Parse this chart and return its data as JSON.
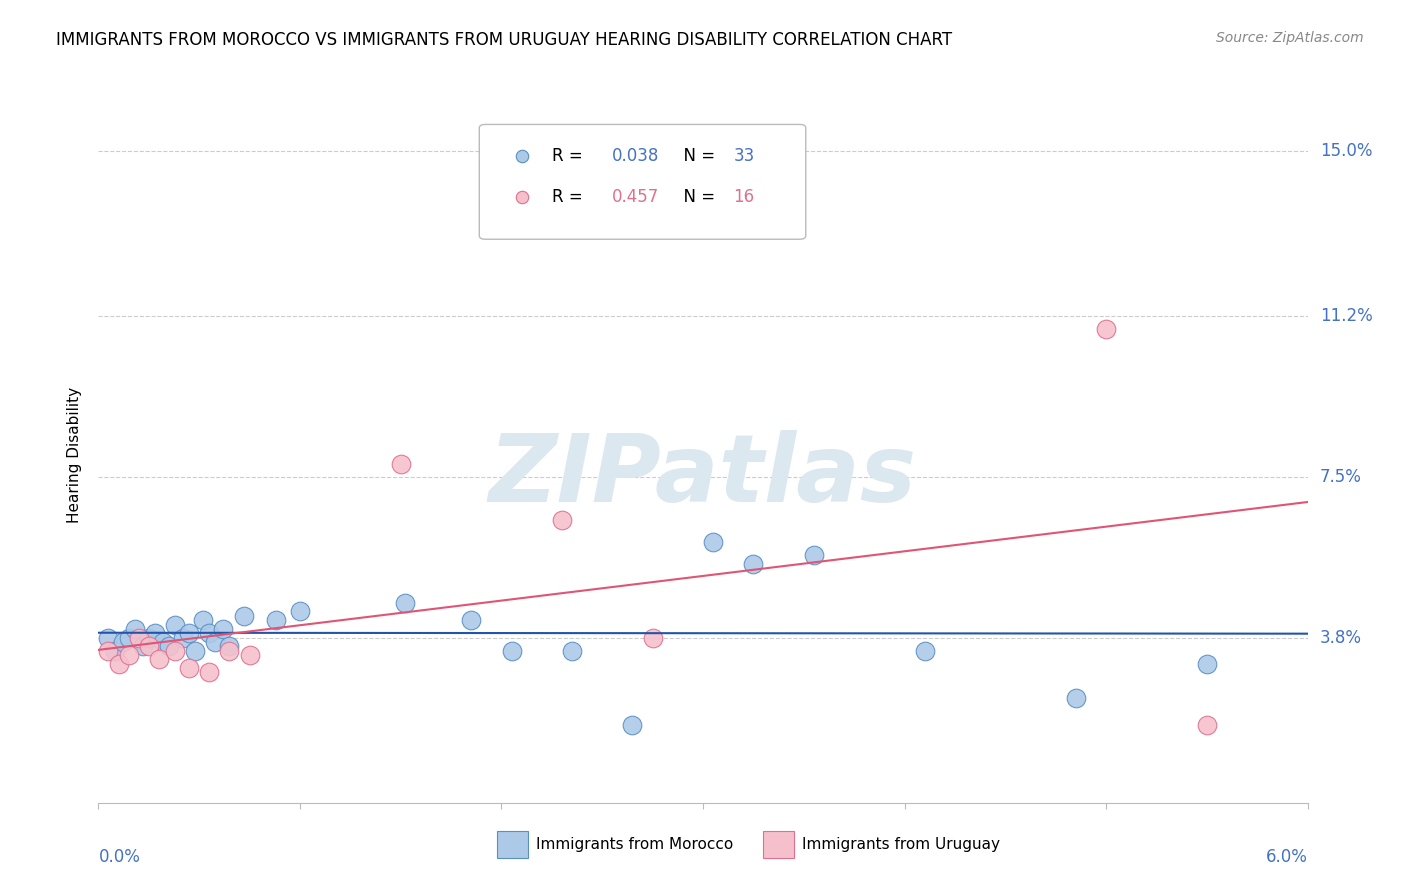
{
  "title": "IMMIGRANTS FROM MOROCCO VS IMMIGRANTS FROM URUGUAY HEARING DISABILITY CORRELATION CHART",
  "source": "Source: ZipAtlas.com",
  "ylabel": "Hearing Disability",
  "xlim": [
    0.0,
    6.0
  ],
  "ylim": [
    0.0,
    16.0
  ],
  "ytick_vals": [
    3.8,
    7.5,
    11.2,
    15.0
  ],
  "ytick_labels": [
    "3.8%",
    "7.5%",
    "11.2%",
    "15.0%"
  ],
  "xtick_vals": [
    0,
    1,
    2,
    3,
    4,
    5,
    6
  ],
  "grid_color": "#cccccc",
  "background_color": "#ffffff",
  "morocco_fill_color": "#adc9e8",
  "morocco_edge_color": "#5a8fc4",
  "uruguay_fill_color": "#f5c0cc",
  "uruguay_edge_color": "#e07090",
  "morocco_line_color": "#2255aa",
  "uruguay_line_color": "#e05575",
  "right_label_color": "#4472c4",
  "morocco_R": 0.038,
  "morocco_N": 33,
  "uruguay_R": 0.457,
  "uruguay_N": 16,
  "morocco_scatter_x": [
    0.05,
    0.08,
    0.12,
    0.15,
    0.18,
    0.22,
    0.25,
    0.28,
    0.32,
    0.35,
    0.38,
    0.42,
    0.45,
    0.48,
    0.52,
    0.55,
    0.58,
    0.62,
    0.65,
    0.72,
    0.88,
    1.0,
    1.52,
    1.85,
    2.05,
    2.35,
    2.65,
    3.05,
    3.25,
    3.55,
    4.1,
    4.85,
    5.5
  ],
  "morocco_scatter_y": [
    3.8,
    3.5,
    3.7,
    3.8,
    4.0,
    3.6,
    3.8,
    3.9,
    3.7,
    3.6,
    4.1,
    3.8,
    3.9,
    3.5,
    4.2,
    3.9,
    3.7,
    4.0,
    3.6,
    4.3,
    4.2,
    4.4,
    4.6,
    4.2,
    3.5,
    3.5,
    1.8,
    6.0,
    5.5,
    5.7,
    3.5,
    2.4,
    3.2
  ],
  "uruguay_scatter_x": [
    0.05,
    0.1,
    0.15,
    0.2,
    0.25,
    0.3,
    0.38,
    0.45,
    0.55,
    0.65,
    0.75,
    1.5,
    2.3,
    2.75,
    5.0,
    5.5
  ],
  "uruguay_scatter_y": [
    3.5,
    3.2,
    3.4,
    3.8,
    3.6,
    3.3,
    3.5,
    3.1,
    3.0,
    3.5,
    3.4,
    7.8,
    6.5,
    3.8,
    10.9,
    1.8
  ],
  "watermark_text": "ZIPatlas",
  "watermark_color": "#dce8f0",
  "title_fontsize": 12,
  "tick_label_fontsize": 12,
  "legend_fontsize": 12
}
